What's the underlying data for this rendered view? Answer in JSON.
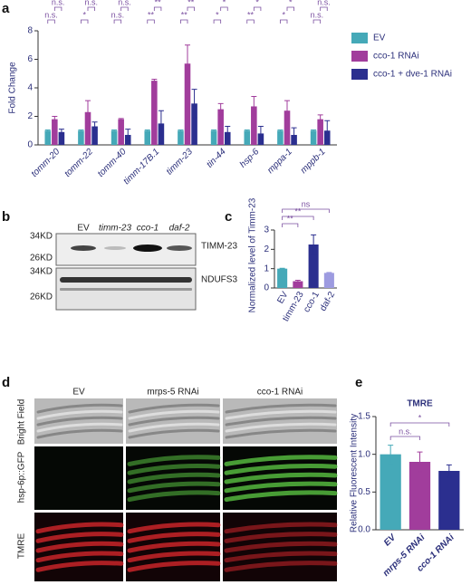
{
  "chart_data": [
    {
      "type": "bar",
      "ylabel": "Fold Change",
      "categories": [
        "tomm-20",
        "tomm-22",
        "tomm-40",
        "timm-17B.1",
        "timm-23",
        "tin-44",
        "hsp-6",
        "mppa-1",
        "mppb-1"
      ],
      "series": [
        {
          "name": "EV",
          "color": "#45a9b8",
          "values": [
            1,
            1,
            1,
            1,
            1,
            1,
            1,
            1,
            1
          ],
          "errors": [
            0.05,
            0.05,
            0.05,
            0.05,
            0.05,
            0.05,
            0.05,
            0.05,
            0.05
          ]
        },
        {
          "name": "cco-1 RNAi",
          "color": "#a13d9c",
          "values": [
            1.8,
            2.3,
            1.8,
            4.5,
            5.7,
            2.5,
            2.7,
            2.4,
            1.8
          ],
          "errors": [
            0.2,
            0.8,
            0.05,
            0.1,
            1.3,
            0.4,
            0.7,
            0.7,
            0.3
          ]
        },
        {
          "name": "cco-1 + dve-1 RNAi",
          "color": "#2b2f8f",
          "values": [
            0.9,
            1.3,
            0.7,
            1.5,
            2.9,
            0.9,
            0.8,
            0.7,
            1.0
          ],
          "errors": [
            0.2,
            0.3,
            0.4,
            0.9,
            1.0,
            0.4,
            0.5,
            0.5,
            0.7
          ]
        }
      ],
      "significance_low": [
        "n.s.",
        "*",
        "n.s.",
        "**",
        "**",
        "*",
        "**",
        "*",
        "n.s."
      ],
      "significance_high": [
        "n.s.",
        "n.s.",
        "n.s.",
        "**",
        "**",
        "*",
        "*",
        "*",
        "n.s."
      ],
      "ylim": [
        0,
        8
      ],
      "yticks": [
        0,
        2,
        4,
        6,
        8
      ],
      "legend": "right"
    },
    {
      "type": "bar",
      "ylabel": "Normalized level of Timm-23",
      "categories": [
        "EV",
        "timm-23",
        "cco-1",
        "daf-2"
      ],
      "values": [
        1,
        0.35,
        2.25,
        0.78
      ],
      "errors": [
        0.02,
        0.05,
        0.5,
        0.02
      ],
      "colors": [
        "#45a9b8",
        "#a13d9c",
        "#2b2f8f",
        "#9d9be0"
      ],
      "significance": [
        null,
        "**",
        "**",
        "ns"
      ],
      "ylim": [
        0,
        3
      ],
      "yticks": [
        0,
        1,
        2,
        3
      ]
    },
    {
      "type": "bar",
      "title": "TMRE",
      "ylabel": "Relative Fluorescent Intensity",
      "categories": [
        "EV",
        "mrps-5 RNAi",
        "cco-1 RNAi"
      ],
      "values": [
        1.0,
        0.9,
        0.78
      ],
      "errors": [
        0.12,
        0.13,
        0.08
      ],
      "colors": [
        "#45a9b8",
        "#a13d9c",
        "#2b2f8f"
      ],
      "significance": [
        null,
        "n.s.",
        "*"
      ],
      "ylim": [
        0,
        1.5
      ],
      "yticks": [
        {
          "value": 0,
          "label": "0.0"
        },
        0.5,
        {
          "value": 1,
          "label": "1.0"
        },
        1.5
      ]
    }
  ],
  "panel_labels": [
    "a",
    "b",
    "c",
    "d",
    "e"
  ],
  "blot": {
    "lanes": [
      "EV",
      "timm-23",
      "cco-1",
      "daf-2"
    ],
    "panels": [
      {
        "protein": "TIMM-23",
        "markers": [
          "34KD",
          "26KD"
        ]
      },
      {
        "protein": "NDUFS3",
        "markers": [
          "34KD",
          "26KD"
        ]
      }
    ]
  },
  "micrographs": {
    "columns": [
      "EV",
      "mrps-5 RNAi",
      "cco-1 RNAi"
    ],
    "rows": [
      "Bright Field",
      "hsp-6p::GFP",
      "TMRE"
    ]
  }
}
